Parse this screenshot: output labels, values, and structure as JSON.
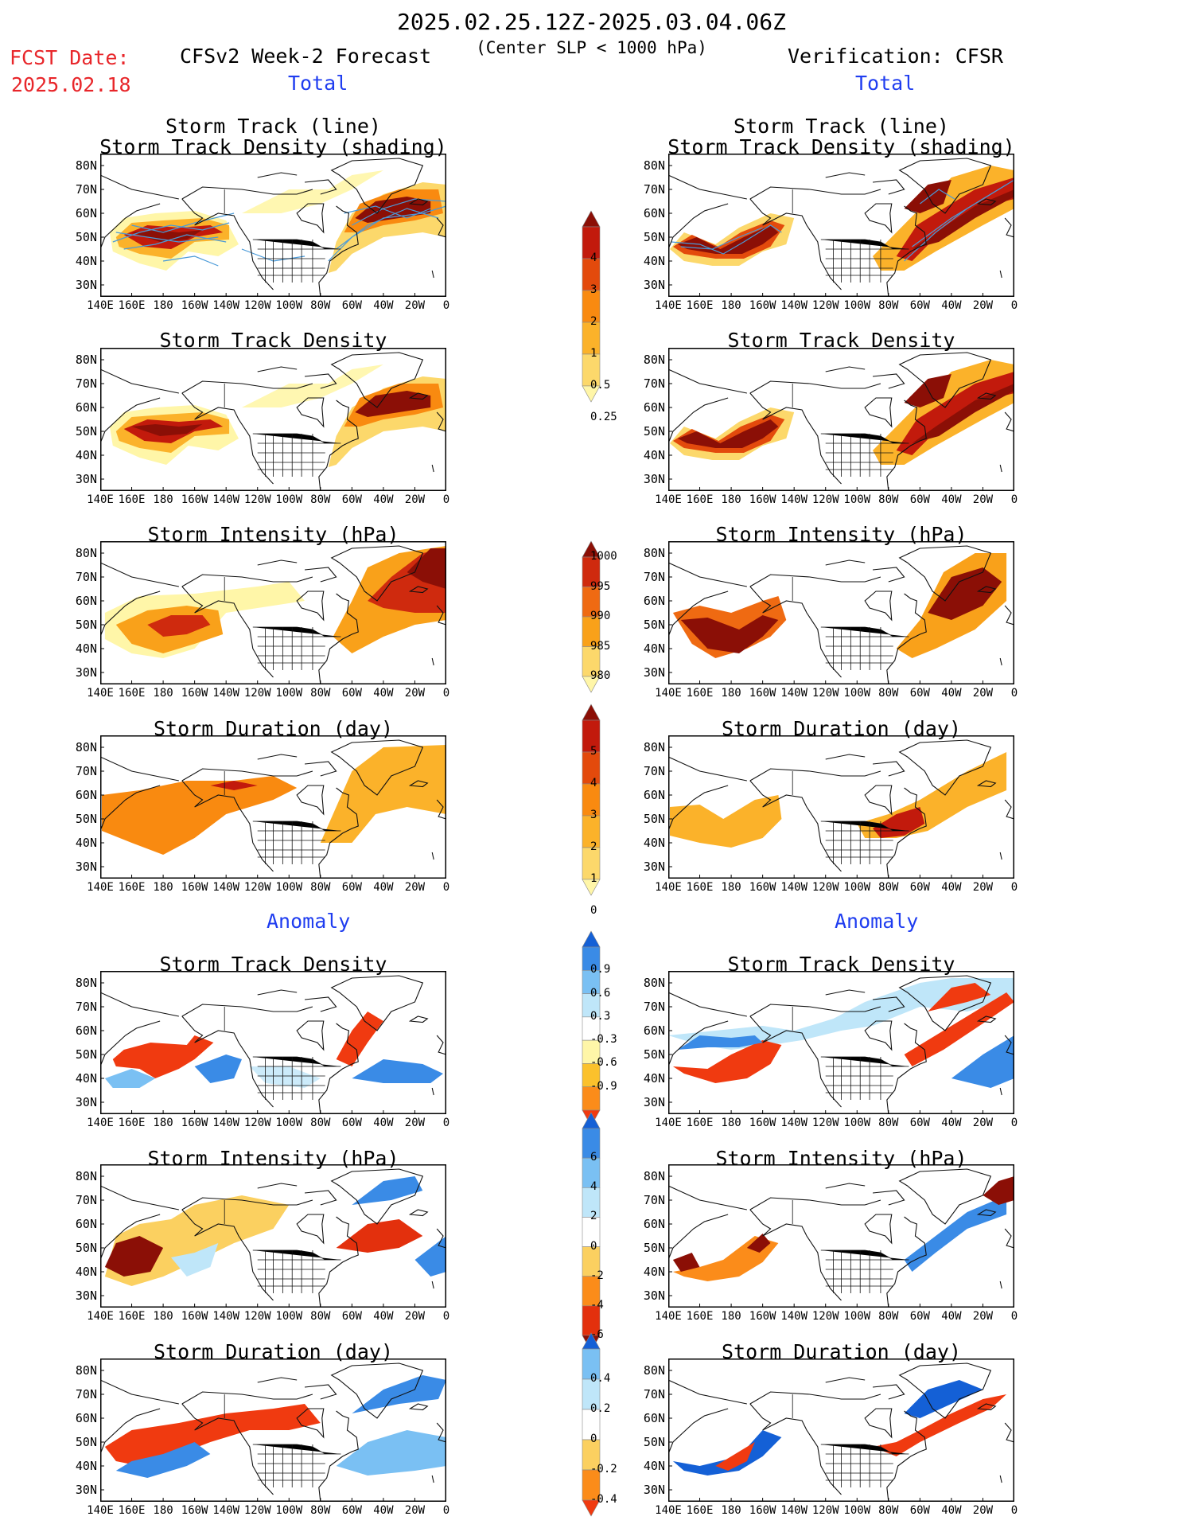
{
  "header": {
    "period": "2025.02.25.12Z-2025.03.04.06Z",
    "subtitle": "(Center SLP < 1000 hPa)",
    "fcst_label": "FCST Date:",
    "fcst_date": "2025.02.18",
    "model_title": "CFSv2 Week-2 Forecast",
    "verification_title": "Verification: CFSR",
    "section_total": "Total",
    "section_anomaly": "Anomaly"
  },
  "panel_titles": {
    "track_line": "Storm Track (line)",
    "track_shading": "Storm Track Density (shading)",
    "density": "Storm Track Density",
    "intensity": "Storm Intensity (hPa)",
    "duration": "Storm Duration (day)"
  },
  "axes": {
    "lat_labels": [
      "80N",
      "70N",
      "60N",
      "50N",
      "40N",
      "30N"
    ],
    "lon_labels": [
      "140E",
      "160E",
      "180",
      "160W",
      "140W",
      "120W",
      "100W",
      "80W",
      "60W",
      "40W",
      "20W",
      "0"
    ]
  },
  "colorbars": {
    "density_total": {
      "labels": [
        "0.25",
        "0.5",
        "1",
        "2",
        "3",
        "4"
      ],
      "colors": [
        "#fff6a8",
        "#fcd86b",
        "#fbb22a",
        "#f98a10",
        "#e34a0c",
        "#c21a0c",
        "#8b0f06"
      ]
    },
    "intensity_total": {
      "labels": [
        "1000",
        "995",
        "990",
        "985",
        "980"
      ],
      "colors": [
        "#fff6a8",
        "#fcd86b",
        "#f9a11a",
        "#ef6a12",
        "#cf2a0e",
        "#8b0f06"
      ]
    },
    "duration_total": {
      "labels": [
        "0",
        "1",
        "2",
        "3",
        "4",
        "5"
      ],
      "colors": [
        "#fff6a8",
        "#fcd86b",
        "#fbb22a",
        "#f98a10",
        "#e34a0c",
        "#c21a0c",
        "#8b0f06"
      ]
    },
    "density_anom": {
      "labels": [
        "0.9",
        "0.6",
        "0.3",
        "-0.3",
        "-0.6",
        "-0.9"
      ],
      "colors": [
        "#f03a10",
        "#fb8c1a",
        "#fbc12c",
        "#fff6a8",
        "#ffffff",
        "#bfe6f9",
        "#7ac0f3",
        "#3a8be6",
        "#1460d6"
      ]
    },
    "intensity_anom": {
      "labels": [
        "6",
        "4",
        "2",
        "0",
        "-2",
        "-4",
        "-6"
      ],
      "colors": [
        "#8b0f06",
        "#e3300d",
        "#fb8c1a",
        "#fbd060",
        "#ffffff",
        "#bfe6f9",
        "#7ac0f3",
        "#3a8be6",
        "#1460d6"
      ]
    },
    "duration_anom": {
      "labels": [
        "0.4",
        "0.2",
        "0",
        "-0.2",
        "-0.4"
      ],
      "colors": [
        "#f03a10",
        "#fb8c1a",
        "#fbd060",
        "#ffffff",
        "#bfe6f9",
        "#7ac0f3",
        "#1460d6"
      ]
    }
  },
  "map_data": {
    "region": "North Pacific - North America - North Atlantic",
    "lon_range": [
      "140E",
      "0"
    ],
    "lat_range": [
      "25N",
      "85N"
    ],
    "storm_track_density_total": {
      "forecast_max_regions": [
        "Northwest Pacific near 50N 170E-160W",
        "North Atlantic near 60N 60W-20W"
      ],
      "verification_max_regions": [
        "Northwest Pacific near 45N 140E-160W",
        "North Atlantic 40N-75N 70W-0"
      ]
    },
    "storm_intensity_total_hpa": {
      "forecast_min": 980,
      "verification_min": 980
    },
    "storm_duration_total_day": {
      "forecast_max": 4,
      "verification_max": 5
    }
  }
}
